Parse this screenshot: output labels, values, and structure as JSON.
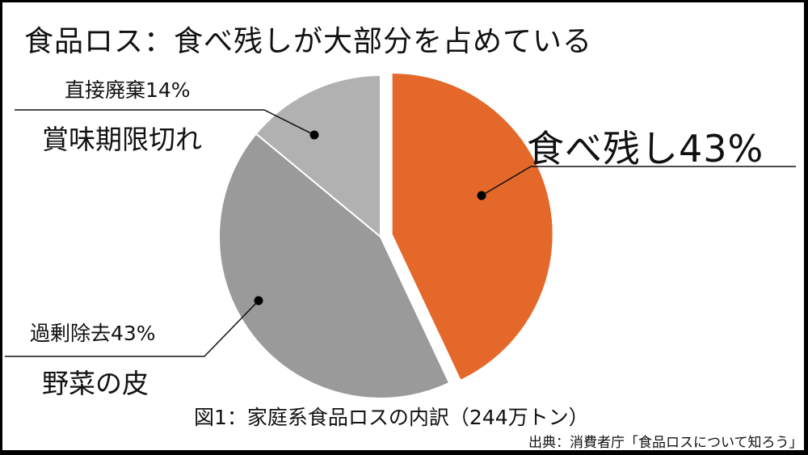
{
  "title": "食品ロス：食べ残しが大部分を占めている",
  "labels": {
    "direct_disposal_pct": "直接廃棄14%",
    "direct_disposal_desc": "賞味期限切れ",
    "leftovers": "食べ残し43%",
    "over_removal_pct": "過剰除去43%",
    "over_removal_desc": "野菜の皮"
  },
  "caption": "図1：家庭系食品ロスの内訳（244万トン）",
  "source": "出典：消費者庁「食品ロスについて知ろう」",
  "colors": {
    "leftovers": "#e4682a",
    "over_removal": "#9a9a9a",
    "direct_disposal": "#b1b1b1"
  },
  "chart_data": {
    "type": "pie",
    "title": "食品ロス：食べ残しが大部分を占めている",
    "subtitle": "図1：家庭系食品ロスの内訳（244万トン）",
    "total": "244万トン",
    "categories": [
      "食べ残し",
      "過剰除去",
      "直接廃棄"
    ],
    "values": [
      43,
      43,
      14
    ],
    "unit": "%",
    "annotations": {
      "過剰除去": "野菜の皮",
      "直接廃棄": "賞味期限切れ"
    },
    "exploded": [
      "食べ残し"
    ],
    "start_angle_deg": 0,
    "direction": "clockwise",
    "legend": "none (leader-line labels)",
    "source": "出典：消費者庁「食品ロスについて知ろう」"
  }
}
